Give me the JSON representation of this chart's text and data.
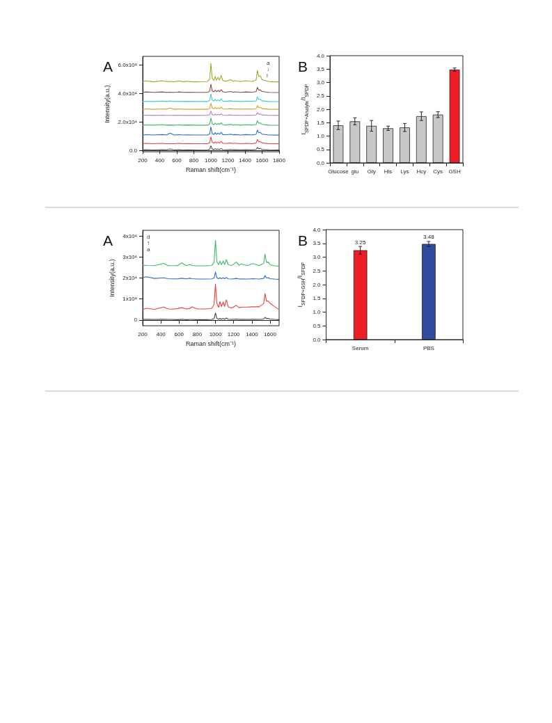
{
  "chart_data": [
    {
      "type": "line",
      "title": "A",
      "xlabel": "Raman shift(cm⁻¹)",
      "ylabel": "Intensity(a.u.)",
      "marker": "none",
      "annotations": [
        "a",
        "↓",
        "i"
      ],
      "xlim": [
        200,
        1800
      ],
      "xticks": [
        200,
        400,
        600,
        800,
        1000,
        1200,
        1400,
        1600,
        1800
      ],
      "ylim": [
        -1000,
        66000
      ],
      "yticks": [
        {
          "value": 0,
          "label": "0.0"
        },
        {
          "value": 20000,
          "label": "2.0x10⁴"
        },
        {
          "value": 40000,
          "label": "4.0x10⁴"
        },
        {
          "value": 60000,
          "label": "6.0x10⁴"
        }
      ],
      "x": [
        200,
        240,
        330,
        430,
        480,
        520,
        570,
        630,
        680,
        720,
        800,
        960,
        985,
        1000,
        1015,
        1035,
        1050,
        1065,
        1085,
        1100,
        1120,
        1140,
        1180,
        1230,
        1260,
        1280,
        1350,
        1410,
        1480,
        1530,
        1545,
        1560,
        1580,
        1600,
        1680,
        1800
      ],
      "series": [
        {
          "color": "#a5a52a",
          "values": [
            48300,
            48800,
            48100,
            48900,
            48300,
            48400,
            48100,
            48800,
            48100,
            48500,
            48100,
            48300,
            49900,
            61000,
            50600,
            49000,
            51900,
            49300,
            51300,
            49300,
            52600,
            49000,
            48500,
            49600,
            48500,
            49000,
            48300,
            48900,
            48400,
            49300,
            56200,
            51900,
            52300,
            49600,
            48300,
            48000
          ]
        },
        {
          "color": "#8b4a4a",
          "values": [
            40700,
            41000,
            40700,
            41000,
            40700,
            40800,
            40700,
            41000,
            40700,
            40800,
            40700,
            40700,
            41500,
            46400,
            41800,
            41100,
            42300,
            41200,
            42100,
            41200,
            42600,
            41100,
            40800,
            41300,
            40800,
            41100,
            40700,
            41000,
            40800,
            41200,
            44300,
            42300,
            42500,
            41300,
            40700,
            40600
          ]
        },
        {
          "color": "#3cc8d8",
          "values": [
            34300,
            34500,
            34300,
            34600,
            34300,
            34700,
            34300,
            34500,
            34300,
            34400,
            34300,
            34300,
            35000,
            39500,
            35300,
            34600,
            35800,
            34700,
            35500,
            34700,
            36100,
            34600,
            34400,
            34800,
            34400,
            34600,
            34300,
            34600,
            34400,
            34700,
            37500,
            35800,
            35900,
            34800,
            34300,
            34200
          ]
        },
        {
          "color": "#d4a020",
          "values": [
            28800,
            29100,
            28800,
            29100,
            28900,
            29700,
            28800,
            29100,
            28800,
            29000,
            28800,
            28900,
            29500,
            33100,
            29700,
            29100,
            30100,
            29200,
            29900,
            29200,
            30300,
            29100,
            29000,
            29300,
            29000,
            29100,
            28900,
            29100,
            28900,
            29200,
            31500,
            30100,
            30200,
            29300,
            28900,
            28800
          ]
        },
        {
          "color": "#b77ec8",
          "values": [
            24600,
            24700,
            24500,
            24700,
            24600,
            24600,
            24500,
            24700,
            24500,
            24600,
            24500,
            24600,
            25000,
            27500,
            25100,
            24700,
            25400,
            24800,
            25300,
            24800,
            25600,
            24700,
            24600,
            24900,
            24600,
            24700,
            24600,
            24700,
            24600,
            24800,
            26400,
            25400,
            25500,
            24900,
            24600,
            24500
          ]
        },
        {
          "color": "#3cb86a",
          "values": [
            17700,
            17900,
            17700,
            18000,
            17700,
            17800,
            17700,
            17900,
            17700,
            17800,
            17700,
            17700,
            18400,
            22700,
            18600,
            18000,
            19100,
            18100,
            18900,
            18100,
            19400,
            18000,
            17800,
            18200,
            17800,
            18000,
            17700,
            18000,
            17800,
            18100,
            20800,
            19100,
            19300,
            18200,
            17700,
            17600
          ]
        },
        {
          "color": "#2a6cc8",
          "values": [
            10800,
            11000,
            10800,
            11100,
            10800,
            12100,
            10800,
            11000,
            10800,
            10900,
            10800,
            10800,
            11500,
            16300,
            11800,
            11100,
            12400,
            11300,
            12100,
            11300,
            12700,
            11100,
            10900,
            11400,
            10900,
            11100,
            10800,
            11100,
            10800,
            11300,
            14200,
            12400,
            12600,
            11400,
            10800,
            10700
          ]
        },
        {
          "color": "#e8404a",
          "values": [
            4700,
            4900,
            4700,
            4900,
            4700,
            4700,
            4700,
            4900,
            4700,
            4800,
            4700,
            4700,
            5300,
            9400,
            5600,
            5000,
            6000,
            5100,
            5800,
            5100,
            6300,
            5000,
            4800,
            5200,
            4800,
            5000,
            4700,
            4900,
            4700,
            5100,
            7600,
            6000,
            6200,
            5200,
            4700,
            4600
          ]
        },
        {
          "color": "#555555",
          "values": [
            400,
            500,
            300,
            500,
            400,
            1000,
            300,
            500,
            300,
            400,
            300,
            400,
            700,
            3200,
            900,
            500,
            1200,
            600,
            1000,
            600,
            1300,
            500,
            400,
            600,
            400,
            500,
            400,
            500,
            400,
            600,
            2100,
            1200,
            1300,
            600,
            400,
            300
          ]
        }
      ]
    },
    {
      "type": "bar",
      "title": "B",
      "ylabel": "I$_{SPDP+Analyte}$/I$_{SPDP}$",
      "categories": [
        "Glucose",
        "glu",
        "Gly",
        "His",
        "Lys",
        "Hcy",
        "Cys",
        "GSH"
      ],
      "values": [
        1.4,
        1.55,
        1.38,
        1.29,
        1.32,
        1.74,
        1.8,
        3.48
      ],
      "errors": [
        0.16,
        0.13,
        0.2,
        0.08,
        0.15,
        0.16,
        0.11,
        0.06
      ],
      "colors": [
        "#c8c8c8",
        "#c8c8c8",
        "#c8c8c8",
        "#c8c8c8",
        "#c8c8c8",
        "#c8c8c8",
        "#c8c8c8",
        "#ee1c25"
      ],
      "ylim": [
        0,
        4
      ],
      "yticks": [
        {
          "value": 0,
          "label": "0.0"
        },
        0.5,
        {
          "value": 1,
          "label": "1.0"
        },
        1.5,
        {
          "value": 2,
          "label": "2.0"
        },
        2.5,
        {
          "value": 3,
          "label": "3.0"
        },
        3.5,
        {
          "value": 4,
          "label": "4.0"
        }
      ]
    },
    {
      "type": "line",
      "title": "A",
      "xlabel": "Raman shift(cm⁻¹)",
      "ylabel": "Intensity(a.u.)",
      "marker": "none",
      "annotations": [
        "d",
        "↑",
        "a"
      ],
      "xlim": [
        200,
        1700
      ],
      "xticks": [
        200,
        400,
        600,
        800,
        1000,
        1200,
        1400,
        1600
      ],
      "ylim": [
        -2700,
        42700
      ],
      "yticks": [
        0,
        {
          "value": 10000,
          "label": "1x10⁴"
        },
        {
          "value": 20000,
          "label": "2x10⁴"
        },
        {
          "value": 30000,
          "label": "3x10⁴"
        },
        {
          "value": 40000,
          "label": "4x10⁴"
        }
      ],
      "x": [
        200,
        240,
        330,
        430,
        480,
        520,
        580,
        630,
        680,
        720,
        740,
        800,
        900,
        960,
        985,
        1000,
        1015,
        1035,
        1050,
        1065,
        1085,
        1100,
        1120,
        1140,
        1180,
        1230,
        1260,
        1280,
        1350,
        1410,
        1480,
        1530,
        1545,
        1560,
        1580,
        1600,
        1650,
        1700
      ],
      "series": [
        {
          "color": "#3cb86a",
          "values": [
            26100,
            26000,
            25900,
            27000,
            25900,
            25900,
            25900,
            27200,
            25900,
            26500,
            26000,
            25800,
            25800,
            26000,
            27500,
            38000,
            27800,
            26300,
            28100,
            26400,
            28100,
            26400,
            28800,
            26300,
            26000,
            27600,
            26000,
            26700,
            25900,
            26900,
            26000,
            27000,
            31400,
            27500,
            27600,
            26300,
            25800,
            25700
          ]
        },
        {
          "color": "#2a6cc8",
          "values": [
            20200,
            20600,
            19800,
            20100,
            19700,
            19600,
            19600,
            19900,
            19600,
            19900,
            19700,
            19500,
            19500,
            19600,
            20000,
            22900,
            20100,
            19700,
            20200,
            19700,
            20100,
            19700,
            20300,
            19600,
            19500,
            19800,
            19500,
            19600,
            19500,
            19700,
            19500,
            19800,
            21200,
            20000,
            20200,
            19700,
            19500,
            19400
          ]
        },
        {
          "color": "#ee3b3b",
          "values": [
            5000,
            5600,
            5100,
            6200,
            5300,
            5200,
            5400,
            5900,
            5300,
            5500,
            6300,
            5300,
            5300,
            5600,
            7500,
            17100,
            8000,
            6000,
            8800,
            6500,
            8600,
            6500,
            9600,
            6300,
            5800,
            7000,
            5900,
            6100,
            6200,
            6300,
            6300,
            7800,
            12600,
            9000,
            9100,
            8000,
            6400,
            4900
          ]
        },
        {
          "color": "#444444",
          "values": [
            300,
            400,
            300,
            400,
            300,
            300,
            200,
            400,
            200,
            300,
            300,
            200,
            200,
            300,
            700,
            3400,
            800,
            400,
            800,
            400,
            700,
            400,
            1000,
            400,
            300,
            500,
            300,
            400,
            300,
            400,
            300,
            500,
            1300,
            700,
            800,
            500,
            300,
            200
          ]
        }
      ]
    },
    {
      "type": "bar",
      "title": "B",
      "ylabel": "I$_{SPDP+GSH}$/I$_{SPDP}$",
      "data_labels": true,
      "categories": [
        "Serum",
        "PBS"
      ],
      "values": [
        3.25,
        3.48
      ],
      "errors": [
        0.14,
        0.09
      ],
      "colors": [
        "#ee1c25",
        "#2e4a9c"
      ],
      "ylim": [
        0,
        4
      ],
      "yticks": [
        {
          "value": 0,
          "label": "0.0"
        },
        0.5,
        {
          "value": 1,
          "label": "1.0"
        },
        1.5,
        {
          "value": 2,
          "label": "2.0"
        },
        2.5,
        {
          "value": 3,
          "label": "3.0"
        },
        3.5,
        {
          "value": 4,
          "label": "4.0"
        }
      ]
    }
  ]
}
